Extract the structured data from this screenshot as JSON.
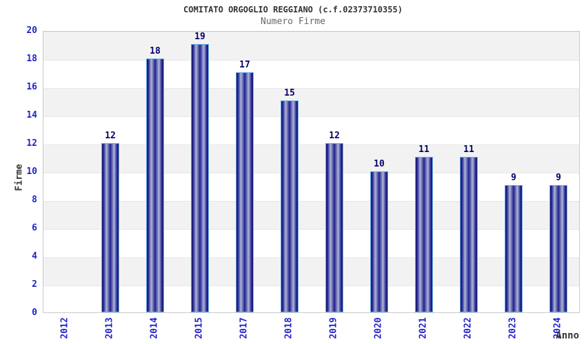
{
  "header": {
    "title": "COMITATO ORGOGLIO REGGIANO (c.f.02373710355)",
    "subtitle": "Numero Firme"
  },
  "chart_data": {
    "type": "bar",
    "title": "COMITATO ORGOGLIO REGGIANO (c.f.02373710355)",
    "subtitle": "Numero Firme",
    "categories": [
      "2012",
      "2013",
      "2014",
      "2015",
      "2017",
      "2018",
      "2019",
      "2020",
      "2021",
      "2022",
      "2023",
      "2024"
    ],
    "values": [
      0,
      12,
      18,
      19,
      17,
      15,
      12,
      10,
      11,
      11,
      9,
      9
    ],
    "xlabel": "Anno",
    "ylabel": "Firme",
    "ylim": [
      0,
      20
    ],
    "ytick_step": 2,
    "yticks": [
      0,
      2,
      4,
      6,
      8,
      10,
      12,
      14,
      16,
      18,
      20
    ],
    "grid": "alternating-horizontal-bands",
    "legend": "none",
    "colors": {
      "bar_dark": "#13136f",
      "bar_mid": "#22228e",
      "bar_highlight": "#aeb6d8",
      "bar_border": "#6ab0e6",
      "tick_label": "#2222cc",
      "value_label": "#000066",
      "title": "#333333",
      "subtitle": "#666666",
      "band_gray": "#f2f2f2",
      "band_white": "#ffffff",
      "plot_border": "#c9c9c9"
    }
  }
}
